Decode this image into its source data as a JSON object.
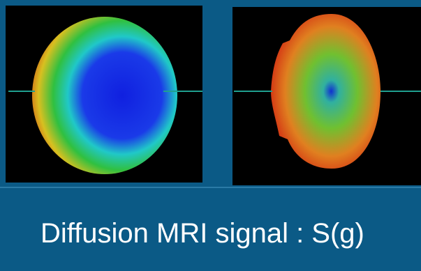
{
  "caption": "Diffusion MRI signal : S(g)"
}
